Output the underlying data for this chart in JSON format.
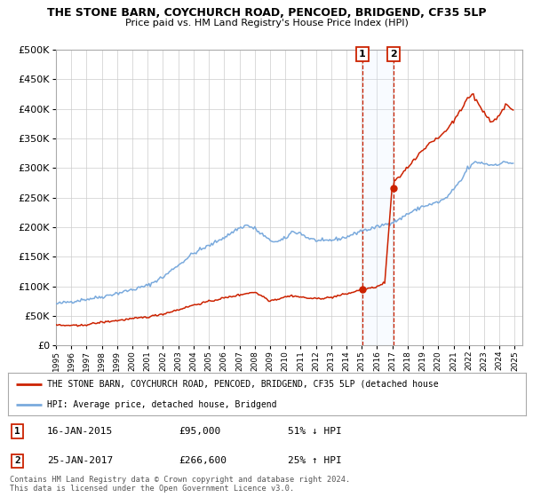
{
  "title": "THE STONE BARN, COYCHURCH ROAD, PENCOED, BRIDGEND, CF35 5LP",
  "subtitle": "Price paid vs. HM Land Registry's House Price Index (HPI)",
  "legend_line1": "THE STONE BARN, COYCHURCH ROAD, PENCOED, BRIDGEND, CF35 5LP (detached house",
  "legend_line2": "HPI: Average price, detached house, Bridgend",
  "transaction1_label": "1",
  "transaction1_date": "16-JAN-2015",
  "transaction1_price": "£95,000",
  "transaction1_hpi": "51% ↓ HPI",
  "transaction2_label": "2",
  "transaction2_date": "25-JAN-2017",
  "transaction2_price": "£266,600",
  "transaction2_hpi": "25% ↑ HPI",
  "footer": "Contains HM Land Registry data © Crown copyright and database right 2024.\nThis data is licensed under the Open Government Licence v3.0.",
  "hpi_color": "#7aaadd",
  "price_color": "#cc2200",
  "marker_color": "#cc2200",
  "vline_color": "#cc2200",
  "shade_color": "#ddeeff",
  "grid_color": "#cccccc",
  "background_color": "#ffffff",
  "ylim": [
    0,
    500000
  ],
  "xlim_start": 1995.0,
  "xlim_end": 2025.5,
  "transaction1_x": 2015.04,
  "transaction1_y_price": 95000,
  "transaction2_x": 2017.07,
  "transaction2_y_price": 266600,
  "hpi_anchors": [
    [
      1995.0,
      70000
    ],
    [
      1996.0,
      74000
    ],
    [
      1997.0,
      78000
    ],
    [
      1998.0,
      82000
    ],
    [
      1999.0,
      88000
    ],
    [
      2000.0,
      94000
    ],
    [
      2001.0,
      101000
    ],
    [
      2002.0,
      115000
    ],
    [
      2003.0,
      135000
    ],
    [
      2004.0,
      155000
    ],
    [
      2004.5,
      162000
    ],
    [
      2005.0,
      168000
    ],
    [
      2006.0,
      182000
    ],
    [
      2007.0,
      198000
    ],
    [
      2007.5,
      203000
    ],
    [
      2008.0,
      198000
    ],
    [
      2008.5,
      188000
    ],
    [
      2009.0,
      178000
    ],
    [
      2009.5,
      175000
    ],
    [
      2010.0,
      180000
    ],
    [
      2010.5,
      192000
    ],
    [
      2011.0,
      190000
    ],
    [
      2011.5,
      182000
    ],
    [
      2012.0,
      178000
    ],
    [
      2012.5,
      176000
    ],
    [
      2013.0,
      178000
    ],
    [
      2013.5,
      180000
    ],
    [
      2014.0,
      183000
    ],
    [
      2014.5,
      188000
    ],
    [
      2015.0,
      194000
    ],
    [
      2015.5,
      196000
    ],
    [
      2016.0,
      200000
    ],
    [
      2016.5,
      204000
    ],
    [
      2017.0,
      208000
    ],
    [
      2017.5,
      213000
    ],
    [
      2018.0,
      222000
    ],
    [
      2018.5,
      228000
    ],
    [
      2019.0,
      235000
    ],
    [
      2019.5,
      238000
    ],
    [
      2020.0,
      242000
    ],
    [
      2020.5,
      248000
    ],
    [
      2021.0,
      262000
    ],
    [
      2021.5,
      278000
    ],
    [
      2022.0,
      300000
    ],
    [
      2022.5,
      310000
    ],
    [
      2023.0,
      308000
    ],
    [
      2023.5,
      305000
    ],
    [
      2024.0,
      307000
    ],
    [
      2024.5,
      310000
    ],
    [
      2024.9,
      308000
    ]
  ],
  "price_anchors": [
    [
      1995.0,
      35000
    ],
    [
      1995.5,
      33500
    ],
    [
      1996.0,
      34000
    ],
    [
      1996.5,
      33000
    ],
    [
      1997.0,
      35000
    ],
    [
      1997.5,
      37000
    ],
    [
      1998.0,
      39000
    ],
    [
      1999.0,
      42000
    ],
    [
      2000.0,
      45000
    ],
    [
      2001.0,
      48000
    ],
    [
      2002.0,
      53000
    ],
    [
      2003.0,
      60000
    ],
    [
      2003.5,
      64000
    ],
    [
      2004.0,
      68000
    ],
    [
      2005.0,
      74000
    ],
    [
      2006.0,
      80000
    ],
    [
      2007.0,
      85000
    ],
    [
      2007.5,
      88000
    ],
    [
      2008.0,
      90000
    ],
    [
      2008.5,
      84000
    ],
    [
      2009.0,
      76000
    ],
    [
      2009.5,
      78000
    ],
    [
      2010.0,
      82000
    ],
    [
      2010.5,
      84000
    ],
    [
      2011.0,
      82000
    ],
    [
      2011.5,
      80000
    ],
    [
      2012.0,
      79000
    ],
    [
      2012.5,
      80000
    ],
    [
      2013.0,
      81000
    ],
    [
      2013.5,
      84000
    ],
    [
      2014.0,
      87000
    ],
    [
      2014.5,
      90000
    ],
    [
      2015.04,
      95000
    ],
    [
      2015.2,
      95500
    ],
    [
      2015.5,
      96000
    ],
    [
      2016.0,
      99000
    ],
    [
      2016.5,
      105000
    ],
    [
      2017.07,
      266600
    ],
    [
      2017.2,
      278000
    ],
    [
      2017.5,
      285000
    ],
    [
      2018.0,
      300000
    ],
    [
      2018.5,
      315000
    ],
    [
      2019.0,
      330000
    ],
    [
      2019.5,
      342000
    ],
    [
      2020.0,
      350000
    ],
    [
      2020.5,
      362000
    ],
    [
      2021.0,
      378000
    ],
    [
      2021.5,
      398000
    ],
    [
      2022.0,
      418000
    ],
    [
      2022.3,
      425000
    ],
    [
      2022.5,
      415000
    ],
    [
      2023.0,
      395000
    ],
    [
      2023.3,
      385000
    ],
    [
      2023.5,
      378000
    ],
    [
      2023.8,
      382000
    ],
    [
      2024.0,
      388000
    ],
    [
      2024.3,
      400000
    ],
    [
      2024.5,
      408000
    ],
    [
      2024.7,
      403000
    ],
    [
      2024.9,
      398000
    ]
  ]
}
